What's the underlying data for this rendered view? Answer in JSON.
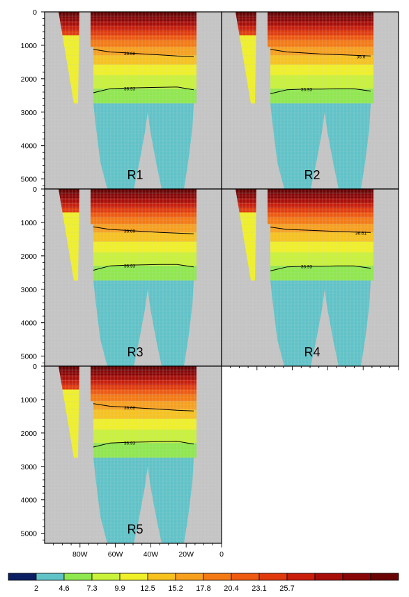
{
  "chart_data": {
    "type": "heatmap",
    "y_axis": {
      "ticks": [
        0,
        1000,
        2000,
        3000,
        4000,
        5000
      ],
      "range": [
        0,
        5300
      ],
      "inverted": true
    },
    "x_axis": {
      "ticks": [
        "80W",
        "60W",
        "40W",
        "20W",
        "0"
      ],
      "range_deg": [
        -100,
        0
      ]
    },
    "colorbar": {
      "tick_labels": [
        "2",
        "4.6",
        "7.3",
        "9.9",
        "12.5",
        "15.2",
        "17.8",
        "20.4",
        "23.1",
        "25.7"
      ],
      "colors": [
        "#0b1e63",
        "#5fc3c8",
        "#8fe84e",
        "#c9f23a",
        "#f0f028",
        "#f7c21e",
        "#f7a01e",
        "#f47a14",
        "#ee5a10",
        "#e03a0c",
        "#c81e0a",
        "#a80e08",
        "#880606",
        "#6a0404"
      ]
    },
    "colors": {
      "land": "#c4c4c4",
      "grid": "#d6d6d6",
      "frame": "#000000"
    },
    "panels": [
      {
        "label": "R1",
        "contours": [
          {
            "label": "36.62",
            "depths": [
              1120,
              1200,
              1230,
              1260,
              1290,
              1320,
              1340
            ]
          },
          {
            "label": "36.93",
            "depths": [
              2420,
              2300,
              2280,
              2270,
              2260,
              2250,
              2330
            ]
          }
        ]
      },
      {
        "label": "R2",
        "contours": [
          {
            "label": "36.6",
            "depths": [
              1120,
              1200,
              1230,
              1260,
              1280,
              1300,
              1320
            ]
          },
          {
            "label": "36.93",
            "depths": [
              2450,
              2330,
              2310,
              2310,
              2300,
              2300,
              2370
            ]
          }
        ]
      },
      {
        "label": "R3",
        "contours": [
          {
            "label": "36.69",
            "depths": [
              1130,
              1210,
              1240,
              1270,
              1300,
              1320,
              1340
            ]
          },
          {
            "label": "36.93",
            "depths": [
              2430,
              2300,
              2280,
              2270,
              2260,
              2260,
              2330
            ]
          }
        ]
      },
      {
        "label": "R4",
        "contours": [
          {
            "label": "36.61",
            "depths": [
              1140,
              1210,
              1230,
              1250,
              1270,
              1290,
              1300
            ]
          },
          {
            "label": "36.93",
            "depths": [
              2450,
              2330,
              2310,
              2310,
              2300,
              2300,
              2370
            ]
          }
        ]
      },
      {
        "label": "R5",
        "contours": [
          {
            "label": "36.62",
            "depths": [
              1120,
              1200,
              1230,
              1260,
              1290,
              1320,
              1340
            ]
          },
          {
            "label": "36.93",
            "depths": [
              2420,
              2300,
              2280,
              2270,
              2260,
              2250,
              2330
            ]
          }
        ]
      }
    ]
  }
}
